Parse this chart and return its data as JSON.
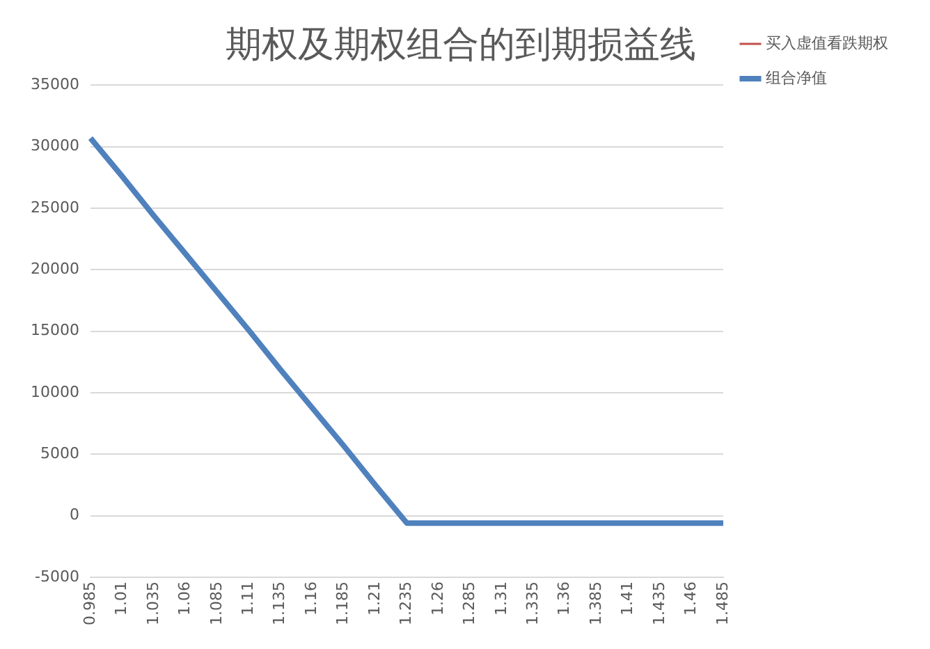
{
  "chart_data": {
    "type": "line",
    "title": "期权及期权组合的到期损益线",
    "categories": [
      "0.985",
      "1.01",
      "1.035",
      "1.06",
      "1.085",
      "1.11",
      "1.135",
      "1.16",
      "1.185",
      "1.21",
      "1.235",
      "1.26",
      "1.285",
      "1.31",
      "1.335",
      "1.36",
      "1.385",
      "1.41",
      "1.435",
      "1.46",
      "1.485"
    ],
    "series": [
      {
        "name": "买入虚值看跌期权",
        "color": "#c0504d",
        "values": [
          null,
          null,
          null,
          null,
          null,
          null,
          null,
          null,
          null,
          null,
          null,
          null,
          null,
          null,
          null,
          null,
          null,
          null,
          null,
          null,
          null
        ]
      },
      {
        "name": "组合净值",
        "color": "#4f81bd",
        "values": [
          30700,
          27600,
          24400,
          21300,
          18200,
          15100,
          11900,
          8800,
          5700,
          2500,
          -600,
          -600,
          -600,
          -600,
          -600,
          -600,
          -600,
          -600,
          -600,
          -600,
          -600
        ]
      }
    ],
    "ylim": [
      -5000,
      35000
    ],
    "yticks": [
      -5000,
      0,
      5000,
      10000,
      15000,
      20000,
      25000,
      30000,
      35000
    ],
    "grid": "y",
    "legend": "right",
    "marker": "none"
  }
}
